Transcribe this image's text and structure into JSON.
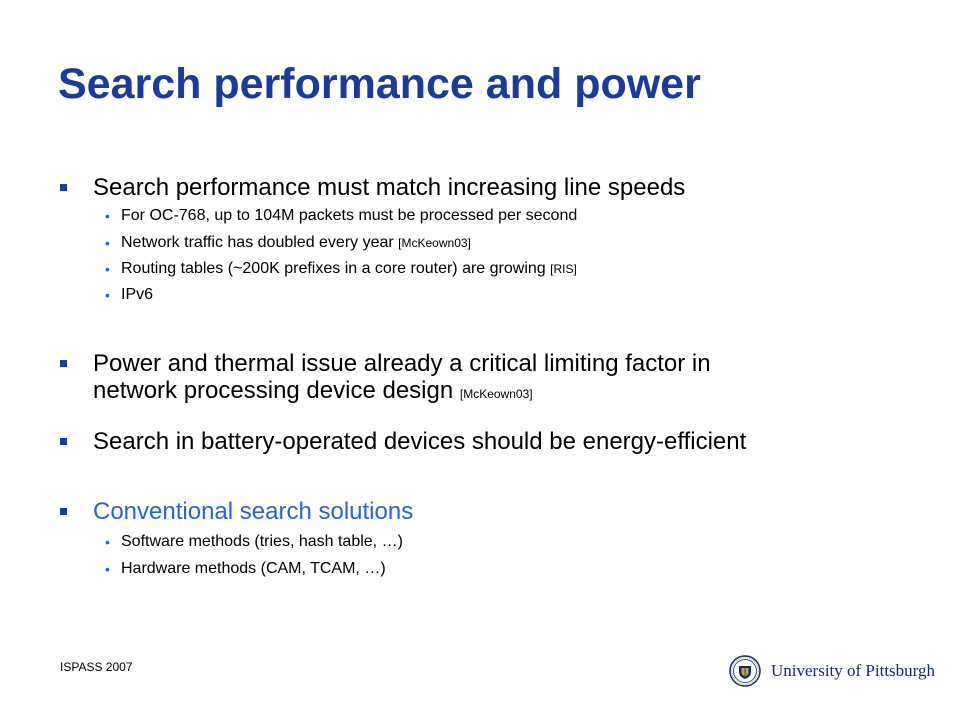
{
  "slide": {
    "title": "Search performance and power",
    "bullets": [
      {
        "text": "Search performance must match increasing line speeds",
        "sub": [
          {
            "text": "For OC-768, up to 104M packets must be processed per second",
            "cite": ""
          },
          {
            "text": "Network traffic has doubled every year ",
            "cite": "[McKeown03]"
          },
          {
            "text": "Routing tables (~200K prefixes in a core router) are growing ",
            "cite": "[RIS]"
          },
          {
            "text": "IPv6",
            "cite": ""
          }
        ]
      },
      {
        "line1": "Power and thermal issue already a critical limiting factor in",
        "line2": "network processing device design ",
        "cite": "[McKeown03]"
      },
      {
        "text": "Search in battery-operated devices should be energy-efficient"
      },
      {
        "text": "Conventional search solutions",
        "sub": [
          {
            "text": "Software methods (tries, hash table, …)"
          },
          {
            "text": "Hardware methods (CAM, TCAM, …)"
          }
        ]
      }
    ]
  },
  "footer": {
    "conference": "ISPASS 2007",
    "university": "University of Pittsburgh"
  },
  "colors": {
    "title": "#1a3a9c",
    "accent": "#2a63d6",
    "marker": "#1a3a9c"
  }
}
